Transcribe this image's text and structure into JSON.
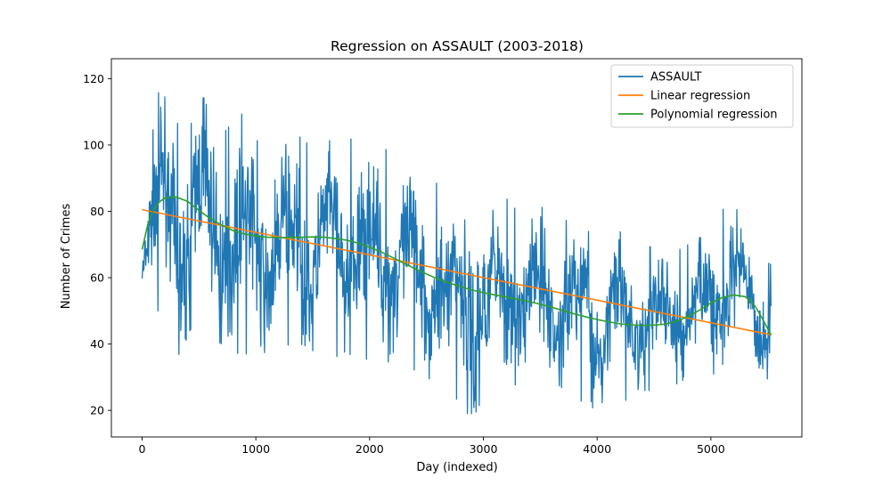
{
  "chart_data": {
    "type": "line",
    "title": "Regression on ASSAULT (2003-2018)",
    "xlabel": "Day (indexed)",
    "ylabel": "Number of Crimes",
    "xlim": [
      -270,
      5800
    ],
    "ylim": [
      12,
      126
    ],
    "xticks": [
      0,
      1000,
      2000,
      3000,
      4000,
      5000
    ],
    "yticks": [
      20,
      40,
      60,
      80,
      100,
      120
    ],
    "legend_position": "top-right",
    "series": [
      {
        "name": "ASSAULT",
        "color": "#1f77b4",
        "kind": "noisy-daily",
        "x_range": [
          0,
          5530
        ],
        "envelope": {
          "x": [
            0,
            100,
            180,
            260,
            330,
            420,
            500,
            600,
            700,
            800,
            900,
            1000,
            1100,
            1200,
            1300,
            1400,
            1500,
            1600,
            1700,
            1800,
            1900,
            2000,
            2100,
            2200,
            2300,
            2400,
            2500,
            2600,
            2700,
            2800,
            2900,
            3000,
            3100,
            3200,
            3300,
            3400,
            3500,
            3600,
            3700,
            3800,
            3900,
            4000,
            4100,
            4200,
            4300,
            4400,
            4500,
            4600,
            4700,
            4800,
            4900,
            5000,
            5100,
            5200,
            5300,
            5400,
            5530
          ],
          "upper": [
            72,
            113,
            118,
            108,
            106,
            104,
            121,
            108,
            103,
            107,
            110,
            102,
            96,
            104,
            98,
            103,
            98,
            97,
            106,
            100,
            105,
            98,
            96,
            102,
            95,
            90,
            92,
            88,
            84,
            86,
            90,
            82,
            80,
            84,
            80,
            76,
            82,
            77,
            77,
            78,
            82,
            76,
            72,
            74,
            70,
            68,
            70,
            64,
            68,
            70,
            72,
            74,
            80,
            88,
            72,
            66,
            64
          ],
          "lower": [
            56,
            52,
            48,
            46,
            36,
            44,
            48,
            42,
            40,
            38,
            36,
            42,
            36,
            38,
            40,
            34,
            38,
            40,
            36,
            38,
            34,
            36,
            32,
            36,
            34,
            32,
            30,
            28,
            26,
            22,
            17,
            24,
            28,
            25,
            28,
            26,
            24,
            26,
            27,
            24,
            22,
            20,
            24,
            22,
            24,
            26,
            26,
            28,
            28,
            30,
            30,
            30,
            34,
            30,
            32,
            28,
            30
          ]
        }
      },
      {
        "name": "Linear regression",
        "color": "#ff7f0e",
        "kind": "line",
        "x": [
          0,
          5530
        ],
        "y": [
          80.5,
          42.8
        ]
      },
      {
        "name": "Polynomial regression",
        "color": "#2ca02c",
        "kind": "curve",
        "x": [
          0,
          50,
          100,
          150,
          200,
          250,
          300,
          400,
          500,
          600,
          700,
          800,
          900,
          1000,
          1100,
          1200,
          1300,
          1400,
          1500,
          1600,
          1700,
          1800,
          1900,
          2000,
          2100,
          2200,
          2300,
          2400,
          2500,
          2600,
          2700,
          2800,
          2900,
          3000,
          3100,
          3200,
          3300,
          3400,
          3500,
          3600,
          3700,
          3800,
          3900,
          4000,
          4100,
          4200,
          4300,
          4400,
          4500,
          4600,
          4700,
          4800,
          4900,
          5000,
          5100,
          5200,
          5300,
          5350,
          5400,
          5450,
          5500,
          5530
        ],
        "y": [
          68.5,
          76,
          80.5,
          82.8,
          84,
          84.3,
          84.3,
          83,
          80.3,
          77.8,
          75.8,
          74.2,
          73.2,
          72.6,
          72.2,
          72.1,
          72.1,
          72.2,
          72.3,
          72.2,
          71.8,
          71.3,
          70.4,
          69.2,
          67.8,
          66.1,
          64.4,
          62.7,
          61.1,
          59.6,
          58.4,
          57.3,
          56.3,
          55.5,
          54.8,
          54.2,
          53.5,
          52.8,
          52,
          51.1,
          50.1,
          49.1,
          48.2,
          47.4,
          46.7,
          46.1,
          45.8,
          45.6,
          45.7,
          46,
          46.9,
          48.3,
          50.2,
          52.4,
          54,
          54.8,
          54.3,
          53,
          50.8,
          47.8,
          44.6,
          42.7
        ]
      }
    ]
  }
}
